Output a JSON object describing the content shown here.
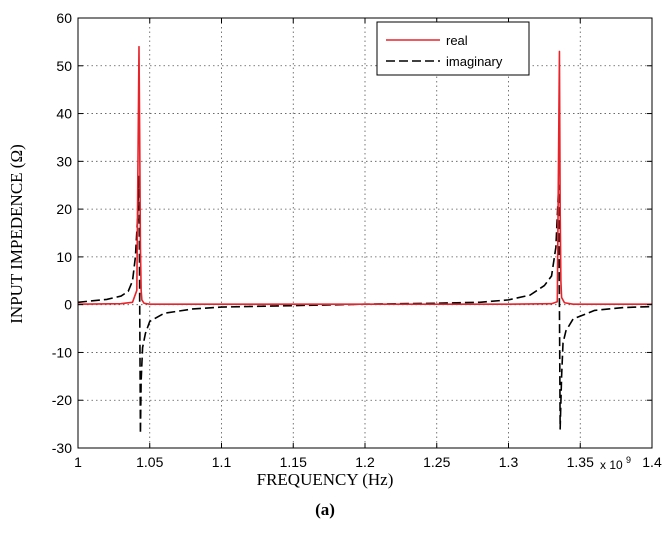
{
  "chart_data": {
    "type": "line",
    "xlabel": "FREQUENCY (Hz)",
    "ylabel": "INPUT IMPEDENCE (Ω)",
    "caption": "(a)",
    "x_multiplier": {
      "base": "x 10",
      "exponent": "9"
    },
    "xlim": [
      1.0,
      1.4
    ],
    "ylim": [
      -30,
      60
    ],
    "grid": true,
    "legend_position": "top-right",
    "x_tick_labels": [
      "1",
      "1.05",
      "1.1",
      "1.15",
      "1.2",
      "1.25",
      "1.3",
      "1.35",
      "1.4"
    ],
    "y_tick_labels": [
      "60",
      "50",
      "40",
      "30",
      "20",
      "10",
      "0",
      "-10",
      "-20",
      "-30"
    ],
    "series": [
      {
        "name": "real",
        "color": "#e8232a",
        "style": "solid",
        "x": [
          1.0,
          1.03,
          1.038,
          1.041,
          1.0425,
          1.043,
          1.0435,
          1.044,
          1.0445,
          1.046,
          1.05,
          1.1,
          1.2,
          1.3,
          1.33,
          1.334,
          1.3355,
          1.336,
          1.3365,
          1.337,
          1.339,
          1.345,
          1.4
        ],
        "values": [
          0.1,
          0.2,
          0.5,
          3,
          54,
          35,
          12,
          3,
          1,
          0.3,
          0.1,
          0.1,
          0.1,
          0.1,
          0.2,
          0.6,
          53,
          20,
          5,
          1.5,
          0.4,
          0.1,
          0.1
        ]
      },
      {
        "name": "imaginary",
        "color": "#000000",
        "style": "dashed",
        "x": [
          1.0,
          1.01,
          1.02,
          1.03,
          1.035,
          1.038,
          1.04,
          1.0415,
          1.0425,
          1.0435,
          1.044,
          1.045,
          1.047,
          1.05,
          1.06,
          1.08,
          1.1,
          1.15,
          1.2,
          1.25,
          1.28,
          1.3,
          1.315,
          1.325,
          1.33,
          1.333,
          1.335,
          1.336,
          1.337,
          1.338,
          1.34,
          1.345,
          1.36,
          1.38,
          1.4
        ],
        "values": [
          0.5,
          0.8,
          1.1,
          1.8,
          2.8,
          5,
          10,
          18,
          27,
          -27,
          -16,
          -9,
          -6,
          -3.5,
          -1.8,
          -0.9,
          -0.5,
          -0.2,
          0.1,
          0.3,
          0.5,
          1,
          2,
          4,
          6,
          12,
          25,
          -26,
          -15,
          -8,
          -5.5,
          -3,
          -1.2,
          -0.6,
          -0.4
        ]
      }
    ]
  }
}
